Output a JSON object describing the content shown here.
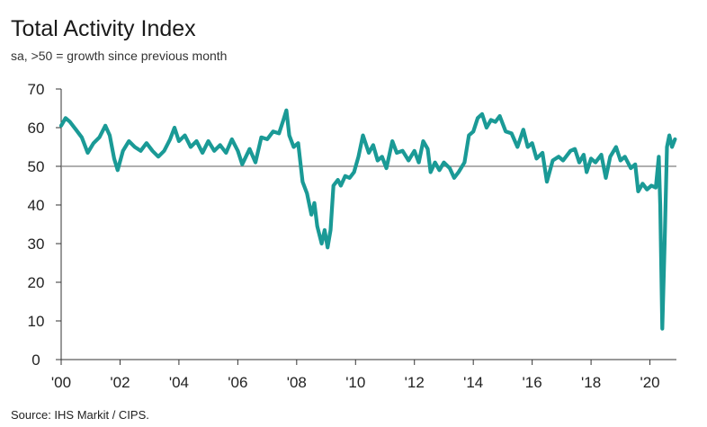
{
  "chart_data": {
    "type": "line",
    "title": "Total Activity Index",
    "subtitle": "sa, >50 = growth since previous month",
    "source": "Source: IHS Markit / CIPS.",
    "xlabel": "",
    "ylabel": "",
    "ylim": [
      0,
      70
    ],
    "yticks": [
      0,
      10,
      20,
      30,
      40,
      50,
      60,
      70
    ],
    "xlim": [
      2000,
      2020.9
    ],
    "xticks": [
      {
        "value": 2000,
        "label": "'00"
      },
      {
        "value": 2002,
        "label": "'02"
      },
      {
        "value": 2004,
        "label": "'04"
      },
      {
        "value": 2006,
        "label": "'06"
      },
      {
        "value": 2008,
        "label": "'08"
      },
      {
        "value": 2010,
        "label": "'10"
      },
      {
        "value": 2012,
        "label": "'12"
      },
      {
        "value": 2014,
        "label": "'14"
      },
      {
        "value": 2016,
        "label": "'16"
      },
      {
        "value": 2018,
        "label": "'18"
      },
      {
        "value": 2020,
        "label": "'20"
      }
    ],
    "reference_line": 50,
    "colors": {
      "series": "#1a9a96",
      "reference": "#7f7f7f",
      "axis": "#333333"
    },
    "series": [
      {
        "name": "Total Activity Index",
        "points": [
          [
            2000.0,
            60.5
          ],
          [
            2000.15,
            62.5
          ],
          [
            2000.3,
            61.5
          ],
          [
            2000.5,
            59.5
          ],
          [
            2000.7,
            57.5
          ],
          [
            2000.9,
            53.5
          ],
          [
            2001.1,
            56.0
          ],
          [
            2001.3,
            57.5
          ],
          [
            2001.5,
            60.5
          ],
          [
            2001.65,
            58.0
          ],
          [
            2001.8,
            52.0
          ],
          [
            2001.92,
            49.0
          ],
          [
            2002.1,
            54.0
          ],
          [
            2002.3,
            56.5
          ],
          [
            2002.5,
            55.0
          ],
          [
            2002.7,
            54.0
          ],
          [
            2002.9,
            56.0
          ],
          [
            2003.1,
            54.0
          ],
          [
            2003.3,
            52.5
          ],
          [
            2003.5,
            54.0
          ],
          [
            2003.7,
            57.0
          ],
          [
            2003.85,
            60.0
          ],
          [
            2004.0,
            56.5
          ],
          [
            2004.2,
            58.0
          ],
          [
            2004.4,
            55.0
          ],
          [
            2004.6,
            56.5
          ],
          [
            2004.8,
            53.5
          ],
          [
            2005.0,
            56.5
          ],
          [
            2005.2,
            54.0
          ],
          [
            2005.4,
            55.5
          ],
          [
            2005.6,
            53.5
          ],
          [
            2005.8,
            57.0
          ],
          [
            2006.0,
            54.0
          ],
          [
            2006.15,
            50.5
          ],
          [
            2006.4,
            54.5
          ],
          [
            2006.6,
            51.0
          ],
          [
            2006.8,
            57.5
          ],
          [
            2007.0,
            57.0
          ],
          [
            2007.2,
            59.0
          ],
          [
            2007.4,
            58.5
          ],
          [
            2007.55,
            62.0
          ],
          [
            2007.65,
            64.5
          ],
          [
            2007.75,
            58.0
          ],
          [
            2007.9,
            55.0
          ],
          [
            2008.05,
            56.0
          ],
          [
            2008.2,
            46.0
          ],
          [
            2008.35,
            43.0
          ],
          [
            2008.5,
            37.5
          ],
          [
            2008.6,
            40.5
          ],
          [
            2008.7,
            34.5
          ],
          [
            2008.85,
            30.0
          ],
          [
            2008.95,
            33.5
          ],
          [
            2009.05,
            29.0
          ],
          [
            2009.15,
            33.5
          ],
          [
            2009.25,
            45.0
          ],
          [
            2009.4,
            46.5
          ],
          [
            2009.5,
            45.0
          ],
          [
            2009.65,
            47.5
          ],
          [
            2009.8,
            47.0
          ],
          [
            2009.95,
            48.5
          ],
          [
            2010.1,
            52.5
          ],
          [
            2010.25,
            58.0
          ],
          [
            2010.45,
            53.5
          ],
          [
            2010.6,
            55.5
          ],
          [
            2010.75,
            51.5
          ],
          [
            2010.9,
            52.5
          ],
          [
            2011.05,
            49.5
          ],
          [
            2011.25,
            56.5
          ],
          [
            2011.4,
            53.5
          ],
          [
            2011.6,
            54.0
          ],
          [
            2011.8,
            51.5
          ],
          [
            2012.0,
            54.0
          ],
          [
            2012.15,
            51.0
          ],
          [
            2012.3,
            56.5
          ],
          [
            2012.45,
            54.5
          ],
          [
            2012.55,
            48.5
          ],
          [
            2012.7,
            51.0
          ],
          [
            2012.85,
            49.0
          ],
          [
            2013.0,
            51.0
          ],
          [
            2013.2,
            49.5
          ],
          [
            2013.35,
            47.0
          ],
          [
            2013.5,
            48.5
          ],
          [
            2013.7,
            51.0
          ],
          [
            2013.85,
            58.0
          ],
          [
            2014.0,
            59.0
          ],
          [
            2014.15,
            62.5
          ],
          [
            2014.3,
            63.5
          ],
          [
            2014.45,
            60.0
          ],
          [
            2014.6,
            62.0
          ],
          [
            2014.75,
            61.5
          ],
          [
            2014.9,
            63.0
          ],
          [
            2015.1,
            59.0
          ],
          [
            2015.3,
            58.5
          ],
          [
            2015.5,
            55.0
          ],
          [
            2015.7,
            59.5
          ],
          [
            2015.85,
            55.0
          ],
          [
            2016.0,
            56.0
          ],
          [
            2016.15,
            52.0
          ],
          [
            2016.35,
            53.5
          ],
          [
            2016.5,
            46.0
          ],
          [
            2016.7,
            51.5
          ],
          [
            2016.9,
            52.5
          ],
          [
            2017.05,
            51.5
          ],
          [
            2017.3,
            54.0
          ],
          [
            2017.45,
            54.5
          ],
          [
            2017.6,
            51.0
          ],
          [
            2017.75,
            53.0
          ],
          [
            2017.85,
            48.5
          ],
          [
            2018.0,
            52.0
          ],
          [
            2018.15,
            51.0
          ],
          [
            2018.35,
            53.0
          ],
          [
            2018.5,
            47.0
          ],
          [
            2018.65,
            52.5
          ],
          [
            2018.85,
            55.0
          ],
          [
            2019.0,
            51.5
          ],
          [
            2019.15,
            52.5
          ],
          [
            2019.35,
            49.5
          ],
          [
            2019.5,
            50.5
          ],
          [
            2019.6,
            43.5
          ],
          [
            2019.75,
            45.5
          ],
          [
            2019.9,
            44.0
          ],
          [
            2020.05,
            45.0
          ],
          [
            2020.2,
            44.5
          ],
          [
            2020.3,
            52.5
          ],
          [
            2020.35,
            40.0
          ],
          [
            2020.42,
            8.0
          ],
          [
            2020.5,
            30.0
          ],
          [
            2020.58,
            55.0
          ],
          [
            2020.66,
            58.0
          ],
          [
            2020.75,
            55.0
          ],
          [
            2020.85,
            57.0
          ]
        ]
      }
    ]
  }
}
